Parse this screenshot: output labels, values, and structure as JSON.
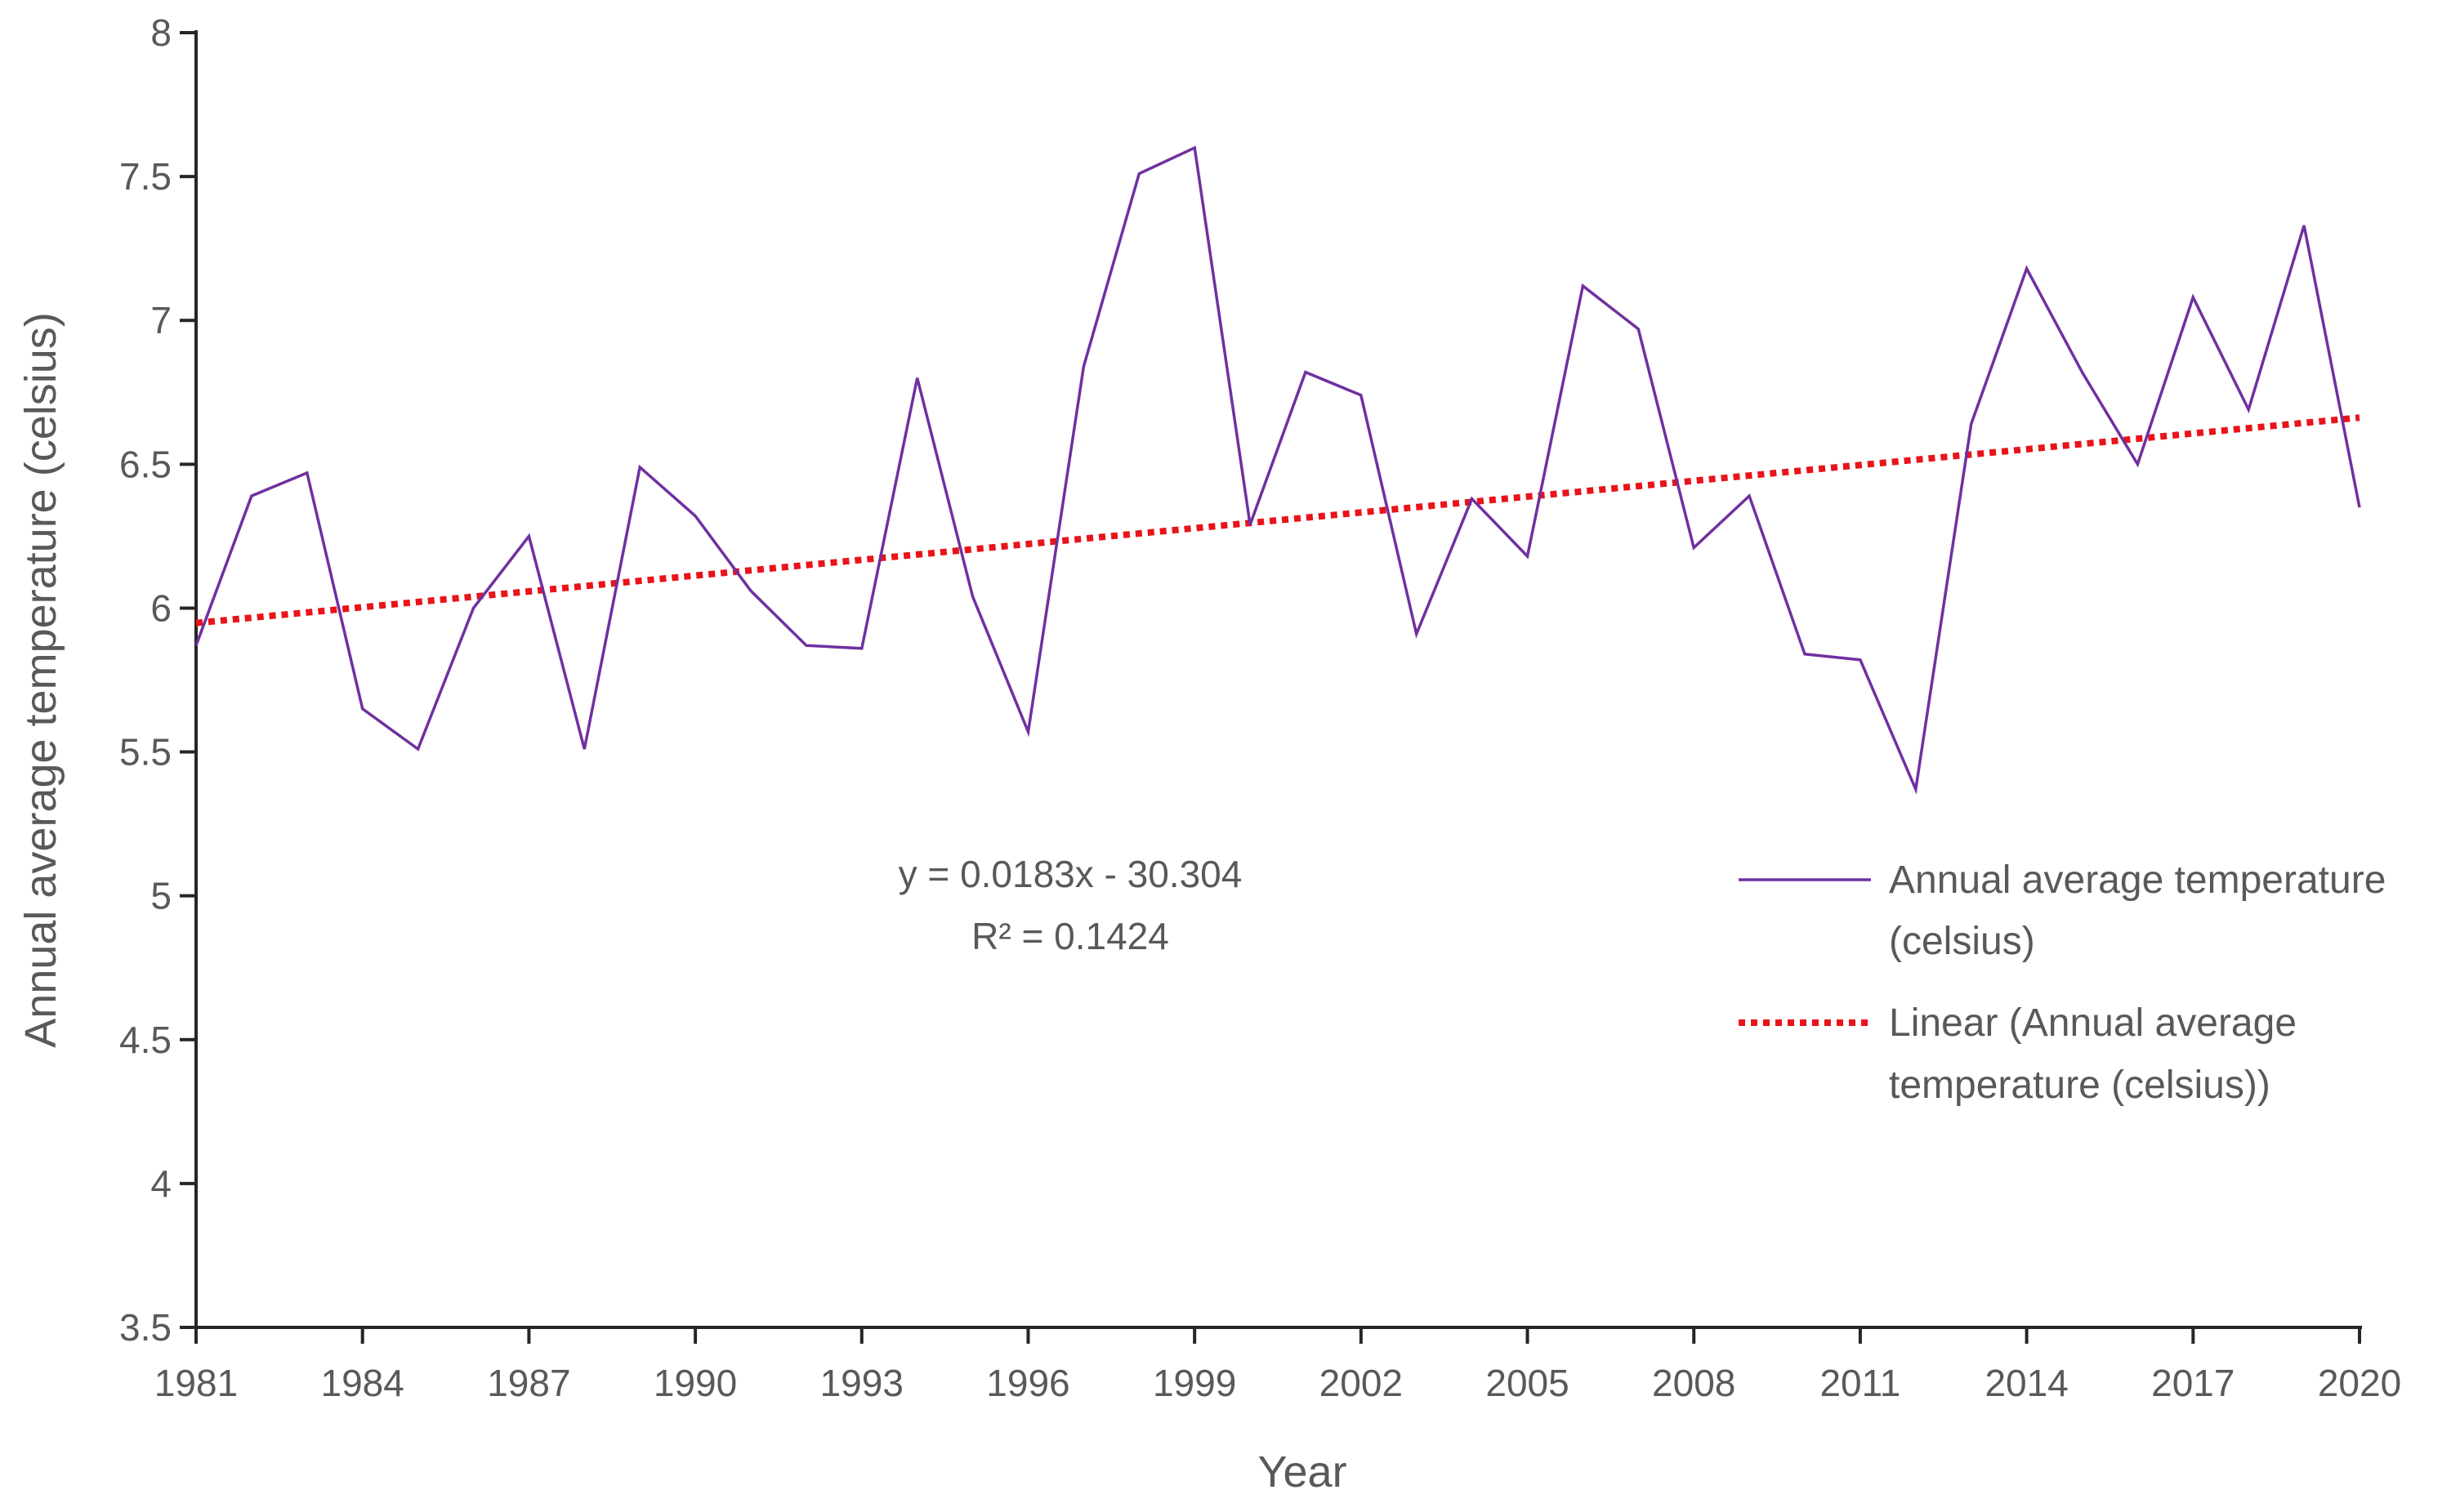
{
  "chart_data": {
    "type": "line",
    "title": "",
    "xlabel": "Year",
    "ylabel": "Annual average temperature (celsius)",
    "ylim": [
      3.5,
      8
    ],
    "yticks": [
      3.5,
      4,
      4.5,
      5,
      5.5,
      6,
      6.5,
      7,
      7.5,
      8
    ],
    "xlim": [
      1981,
      2020
    ],
    "xticks": [
      1981,
      1984,
      1987,
      1990,
      1993,
      1996,
      1999,
      2002,
      2005,
      2008,
      2011,
      2014,
      2017,
      2020
    ],
    "grid": false,
    "legend_position": "right",
    "series": [
      {
        "name": "Annual average temperature (celsius)",
        "legend_lines": [
          "Annual average temperature",
          "(celsius)"
        ],
        "color": "#7030a0",
        "style": "solid",
        "x": [
          1981,
          1982,
          1983,
          1984,
          1985,
          1986,
          1987,
          1988,
          1989,
          1990,
          1991,
          1992,
          1993,
          1994,
          1995,
          1996,
          1997,
          1998,
          1999,
          2000,
          2001,
          2002,
          2003,
          2004,
          2005,
          2006,
          2007,
          2008,
          2009,
          2010,
          2011,
          2012,
          2013,
          2014,
          2015,
          2016,
          2017,
          2018,
          2019,
          2020
        ],
        "values": [
          5.87,
          6.39,
          6.47,
          5.65,
          5.51,
          6.0,
          6.25,
          5.51,
          6.49,
          6.32,
          6.06,
          5.87,
          5.86,
          6.8,
          6.04,
          5.57,
          6.84,
          7.51,
          7.6,
          6.29,
          6.82,
          6.74,
          5.91,
          6.38,
          6.18,
          7.12,
          6.97,
          6.21,
          6.39,
          5.84,
          5.82,
          5.37,
          6.64,
          7.18,
          6.82,
          6.5,
          7.08,
          6.69,
          7.33,
          6.35
        ]
      },
      {
        "name": "Linear (Annual average temperature (celsius))",
        "legend_lines": [
          "Linear (Annual average",
          "temperature (celsius))"
        ],
        "color": "#e8141a",
        "style": "dotted",
        "trendline": {
          "slope": 0.0183,
          "intercept": -30.304
        }
      }
    ],
    "annotations": {
      "equation": "y = 0.0183x - 30.304",
      "r_squared": "R² = 0.1424"
    }
  }
}
